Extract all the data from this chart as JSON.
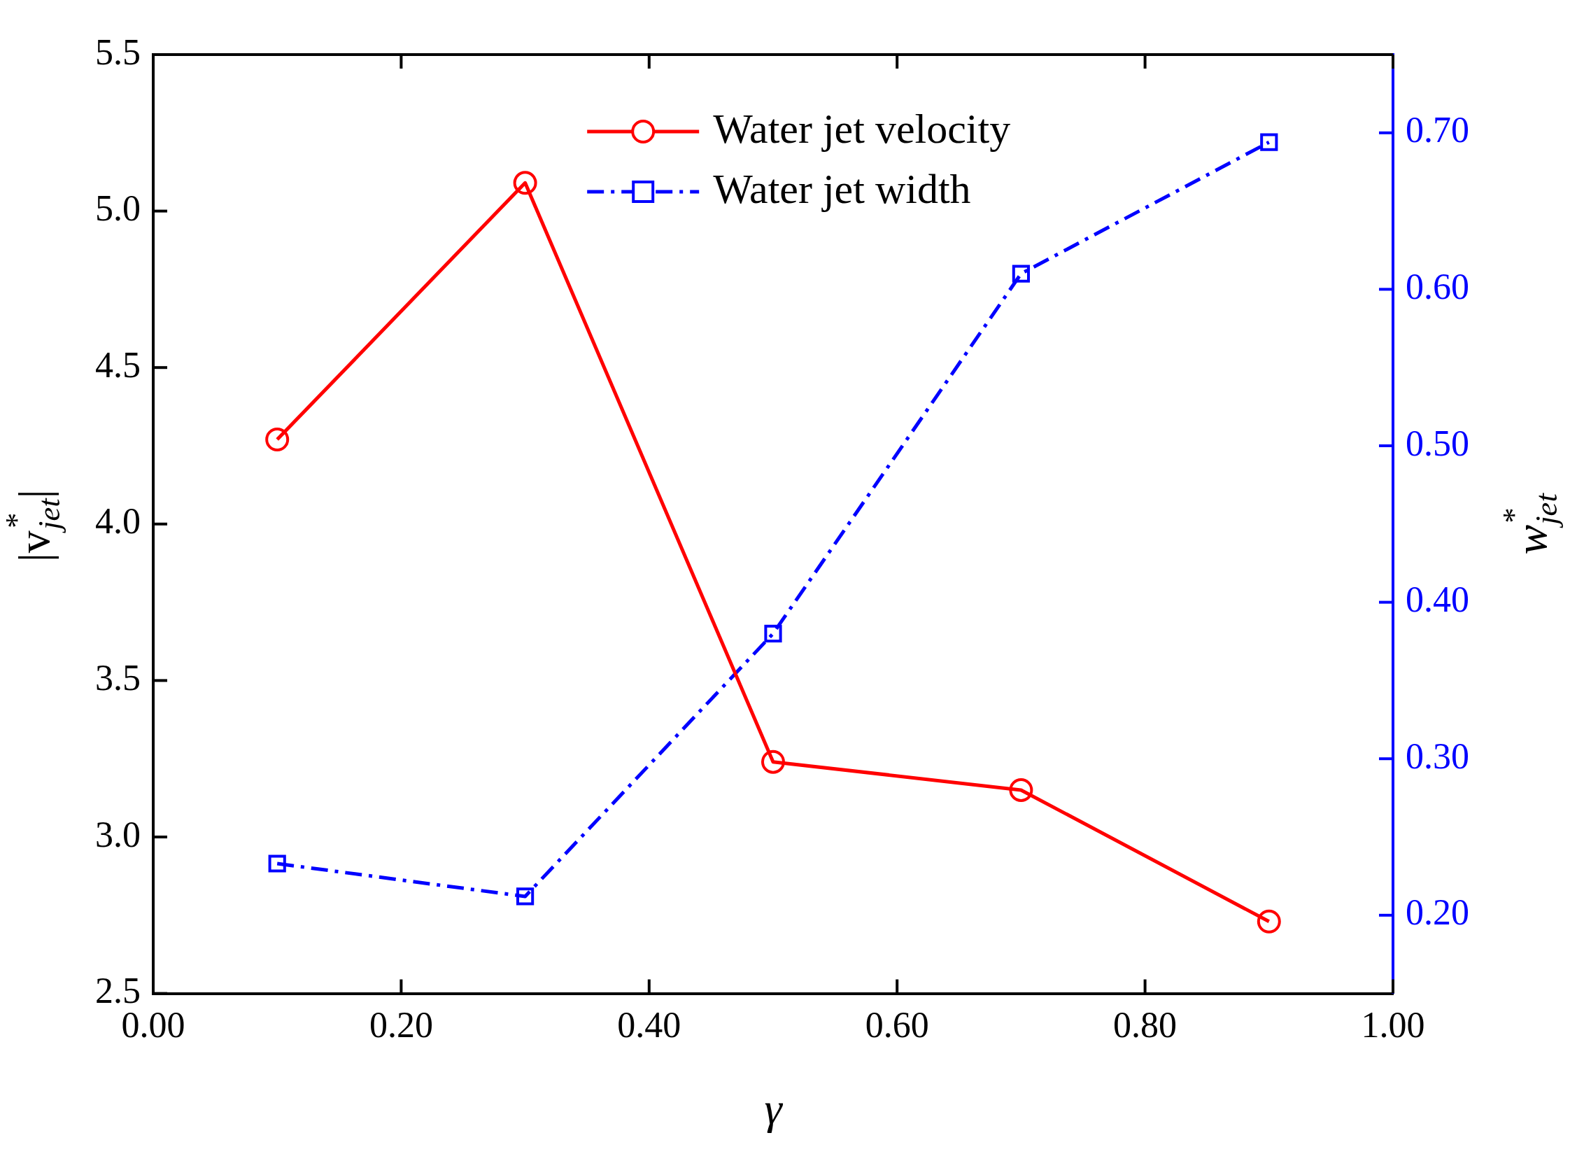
{
  "chart_data": {
    "type": "line",
    "xlabel": "γ",
    "ylabel": "|v$_{jet}$$^{*}$|",
    "y2label": "w$_{jet}$$^{*}$",
    "x": [
      0.1,
      0.3,
      0.5,
      0.7,
      0.9
    ],
    "xlim": [
      0,
      1
    ],
    "xticks": [
      {
        "value": 0,
        "label": "0.00"
      },
      {
        "value": 0.2,
        "label": "0.20"
      },
      {
        "value": 0.4,
        "label": "0.40"
      },
      {
        "value": 0.6,
        "label": "0.60"
      },
      {
        "value": 0.8,
        "label": "0.80"
      },
      {
        "value": 1,
        "label": "1.00"
      }
    ],
    "ylim": [
      2.5,
      5.5
    ],
    "yticks": [
      2.5,
      {
        "value": 3,
        "label": "3.0"
      },
      3.5,
      {
        "value": 4,
        "label": "4.0"
      },
      4.5,
      {
        "value": 5,
        "label": "5.0"
      },
      5.5
    ],
    "y2lim": [
      0.15,
      0.75
    ],
    "y2ticks": [
      {
        "value": 0.2,
        "label": "0.20"
      },
      {
        "value": 0.3,
        "label": "0.30"
      },
      {
        "value": 0.4,
        "label": "0.40"
      },
      {
        "value": 0.5,
        "label": "0.50"
      },
      {
        "value": 0.6,
        "label": "0.60"
      },
      {
        "value": 0.7,
        "label": "0.70"
      }
    ],
    "grid": false,
    "legend": "top",
    "series": [
      {
        "name": "Water jet velocity",
        "color": "#ff0000",
        "values": [
          4.27,
          5.09,
          3.24,
          3.15,
          2.73
        ],
        "marker": "circle",
        "line_style": "solid"
      },
      {
        "name": "Water jet width",
        "color": "#0000ff",
        "values": [
          0.233,
          0.212,
          0.38,
          0.61,
          0.694
        ],
        "axis": "y2",
        "marker": "square",
        "line_style": "dashdot"
      }
    ]
  }
}
